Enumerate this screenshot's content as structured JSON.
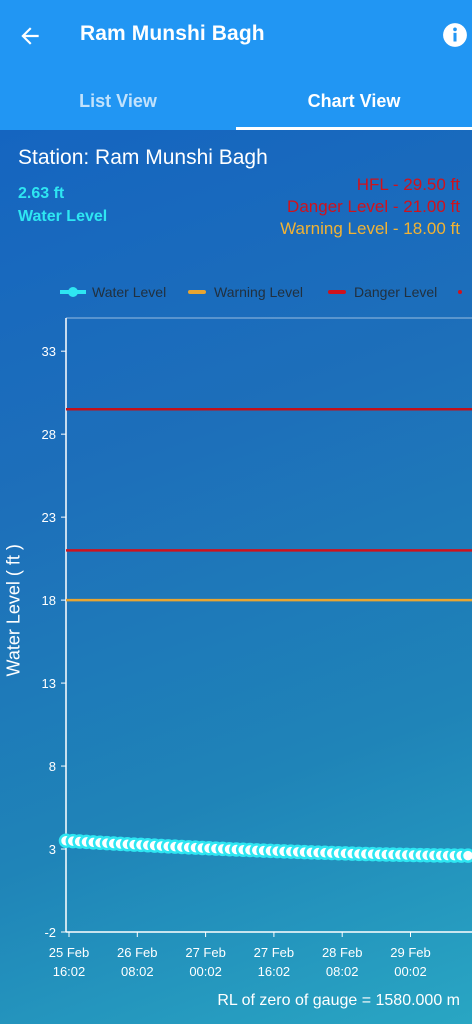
{
  "appbar": {
    "title": "Ram Munshi Bagh",
    "back_icon": "arrow-back-icon",
    "info_icon": "info-icon"
  },
  "tabs": [
    {
      "label": "List View",
      "active": false
    },
    {
      "label": "Chart View",
      "active": true
    }
  ],
  "station": {
    "label": "Station: Ram Munshi Bagh",
    "water_level_value": "2.63 ft",
    "water_level_label": "Water Level",
    "hfl": "HFL - 29.50 ft",
    "danger": "Danger Level - 21.00 ft",
    "warning": "Warning Level - 18.00 ft"
  },
  "legend": {
    "water": "Water Level",
    "warning": "Warning Level",
    "danger": "Danger Level"
  },
  "colors": {
    "water": "#2ee6f2",
    "warning": "#e8a531",
    "danger": "#d0121c",
    "hfl": "#c2101a"
  },
  "footer": {
    "rl": "RL of zero of gauge = 1580.000 m"
  },
  "chart_data": {
    "type": "line",
    "ylabel": "Water Level ( ft )",
    "ylim": [
      -2,
      35
    ],
    "yticks": [
      -2,
      3,
      8,
      13,
      18,
      23,
      28,
      33
    ],
    "xticks": [
      {
        "line1": "25 Feb",
        "line2": "16:02"
      },
      {
        "line1": "26 Feb",
        "line2": "08:02"
      },
      {
        "line1": "27 Feb",
        "line2": "00:02"
      },
      {
        "line1": "27 Feb",
        "line2": "16:02"
      },
      {
        "line1": "28 Feb",
        "line2": "08:02"
      },
      {
        "line1": "29 Feb",
        "line2": "00:02"
      }
    ],
    "reference_lines": [
      {
        "name": "HFL",
        "value": 29.5
      },
      {
        "name": "Danger Level",
        "value": 21.0
      },
      {
        "name": "Warning Level",
        "value": 18.0
      }
    ],
    "series": [
      {
        "name": "Water Level",
        "start": 3.5,
        "end": 2.6,
        "points": 60
      }
    ]
  }
}
